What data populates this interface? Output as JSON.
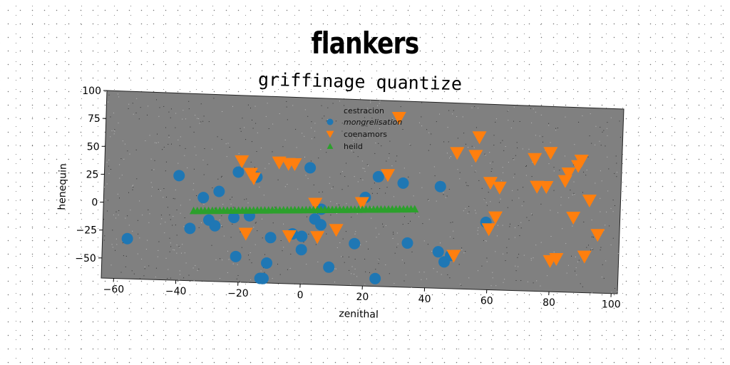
{
  "chart_data": {
    "type": "scatter",
    "title": "flankers",
    "subtitle": "griffinage quantize",
    "xlabel": "zenithal",
    "ylabel": "henequin",
    "xlim": [
      -64,
      102
    ],
    "ylim": [
      -68,
      100
    ],
    "xticks": [
      -60,
      -40,
      -20,
      0,
      20,
      40,
      60,
      80,
      100
    ],
    "yticks": [
      -50,
      -25,
      0,
      25,
      50,
      75,
      100
    ],
    "legend_title": "cestracion",
    "legend_position": "top-center",
    "background": "#808080",
    "series": [
      {
        "name": "mongrelisation",
        "marker": "circle",
        "color": "#1f77b4",
        "points": [
          [
            -56,
            -32
          ],
          [
            -40,
            26
          ],
          [
            -36,
            -21
          ],
          [
            -32,
            7
          ],
          [
            -30,
            -13
          ],
          [
            -28,
            -18
          ],
          [
            -27,
            13
          ],
          [
            -22,
            -10
          ],
          [
            -21,
            -45
          ],
          [
            -21,
            31
          ],
          [
            -17,
            -8
          ],
          [
            -15,
            27
          ],
          [
            -13,
            -64
          ],
          [
            -12,
            -64
          ],
          [
            -11,
            -50
          ],
          [
            -10,
            -27
          ],
          [
            -3,
            -23
          ],
          [
            0,
            -37
          ],
          [
            0,
            -25
          ],
          [
            2,
            37
          ],
          [
            4,
            -9
          ],
          [
            6,
            0
          ],
          [
            6,
            -14
          ],
          [
            9,
            -52
          ],
          [
            17,
            -30
          ],
          [
            20,
            12
          ],
          [
            24,
            -61
          ],
          [
            24,
            31
          ],
          [
            32,
            26
          ],
          [
            34,
            -28
          ],
          [
            44,
            24
          ],
          [
            44,
            -35
          ],
          [
            46,
            -44
          ],
          [
            48,
            -38
          ],
          [
            59,
            -7
          ]
        ]
      },
      {
        "name": "coenamors",
        "marker": "triangle-down",
        "color": "#ff7f0e",
        "points": [
          [
            -20,
            41
          ],
          [
            -18,
            -24
          ],
          [
            -17,
            30
          ],
          [
            -16,
            26
          ],
          [
            -8,
            41
          ],
          [
            -5,
            40
          ],
          [
            -4,
            -25
          ],
          [
            -3,
            40
          ],
          [
            4,
            5
          ],
          [
            5,
            -25
          ],
          [
            11,
            -18
          ],
          [
            19,
            7
          ],
          [
            27,
            33
          ],
          [
            30,
            85
          ],
          [
            49,
            -38
          ],
          [
            49,
            55
          ],
          [
            55,
            53
          ],
          [
            56,
            70
          ],
          [
            60,
            -13
          ],
          [
            60,
            29
          ],
          [
            62,
            -2
          ],
          [
            63,
            25
          ],
          [
            74,
            52
          ],
          [
            75,
            27
          ],
          [
            78,
            27
          ],
          [
            79,
            58
          ],
          [
            80,
            -40
          ],
          [
            82,
            -38
          ],
          [
            84,
            33
          ],
          [
            85,
            40
          ],
          [
            87,
            0
          ],
          [
            88,
            47
          ],
          [
            89,
            52
          ],
          [
            91,
            -35
          ],
          [
            92,
            16
          ],
          [
            95,
            -15
          ]
        ]
      },
      {
        "name": "heild",
        "marker": "triangle-up",
        "color": "#2ca02c",
        "x_range": [
          -35,
          36
        ],
        "y_range": [
          -5,
          3
        ],
        "count": 60
      }
    ]
  }
}
